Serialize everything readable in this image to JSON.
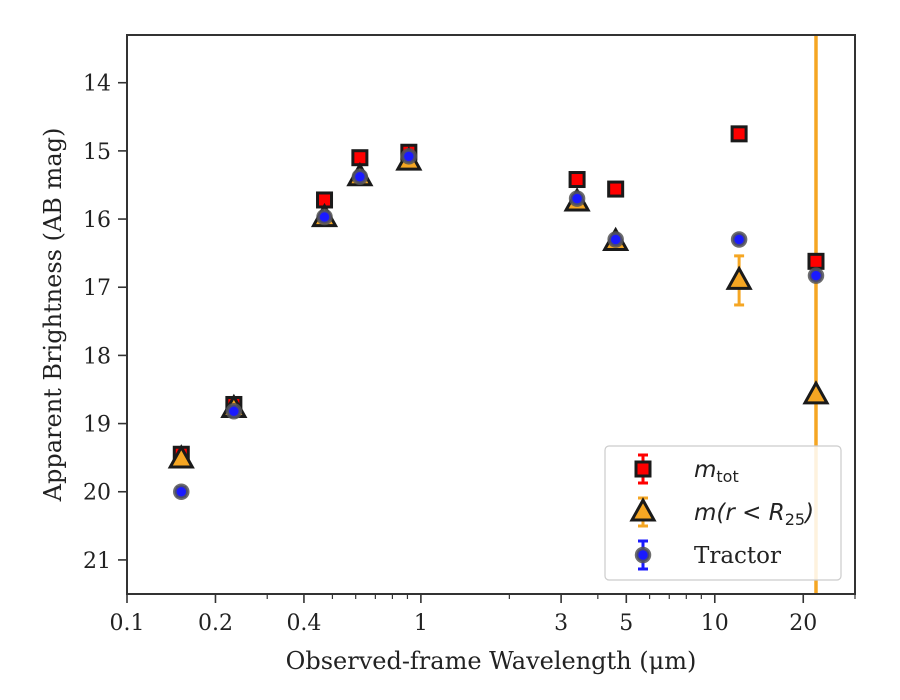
{
  "chart_data": {
    "type": "scatter",
    "xlabel": "Observed-frame Wavelength (μm)",
    "ylabel": "Apparent Brightness (AB mag)",
    "xscale": "log",
    "xlim": [
      0.1,
      30
    ],
    "ylim": [
      21.5,
      13.3
    ],
    "y_inverted": true,
    "x_ticks": [
      {
        "value": 0.1,
        "label": "0.1"
      },
      {
        "value": 0.2,
        "label": "0.2"
      },
      {
        "value": 0.4,
        "label": "0.4"
      },
      {
        "value": 1,
        "label": "1"
      },
      {
        "value": 3,
        "label": "3"
      },
      {
        "value": 5,
        "label": "5"
      },
      {
        "value": 10,
        "label": "10"
      },
      {
        "value": 20,
        "label": "20"
      }
    ],
    "y_ticks": [
      14,
      15,
      16,
      17,
      18,
      19,
      20,
      21
    ],
    "grid": false,
    "legend_position": "lower-right",
    "vertical_line": {
      "x": 22.1,
      "color": "#f5a623"
    },
    "series": [
      {
        "name": "m_tot",
        "legend_main": "m",
        "legend_sub": "tot",
        "marker": "square",
        "color": "#ff0000",
        "edge": "#1a1a1a",
        "x": [
          0.153,
          0.231,
          0.47,
          0.62,
          0.91,
          3.4,
          4.6,
          12.1,
          22.1
        ],
        "y": [
          19.45,
          18.72,
          15.72,
          15.1,
          15.02,
          15.42,
          15.56,
          14.75,
          16.62
        ],
        "err": [
          0.08,
          0.05,
          0.03,
          0.03,
          0.03,
          0.03,
          0.03,
          0.03,
          0.05
        ]
      },
      {
        "name": "m(r < R_25)",
        "legend_main": "m(r < R",
        "legend_sub": "25",
        "legend_tail": ")",
        "marker": "triangle",
        "color": "#f5a623",
        "edge": "#1a1a1a",
        "x": [
          0.153,
          0.231,
          0.47,
          0.62,
          0.91,
          3.4,
          4.6,
          12.1,
          22.1
        ],
        "y": [
          19.52,
          18.78,
          15.98,
          15.38,
          15.15,
          15.75,
          16.33,
          16.9,
          18.58
        ],
        "err": [
          0.05,
          0.04,
          0.03,
          0.03,
          0.05,
          0.04,
          0.04,
          0.36,
          0.0
        ]
      },
      {
        "name": "Tractor",
        "marker": "circle",
        "color": "#1a1aff",
        "edge": "#555555",
        "x": [
          0.153,
          0.231,
          0.47,
          0.62,
          0.91,
          3.4,
          4.6,
          12.1,
          22.1
        ],
        "y": [
          20.0,
          18.82,
          15.97,
          15.38,
          15.08,
          15.7,
          16.3,
          16.3,
          16.83
        ],
        "err": [
          0.06,
          0.04,
          0.03,
          0.03,
          0.03,
          0.03,
          0.03,
          0.03,
          0.05
        ]
      }
    ]
  }
}
